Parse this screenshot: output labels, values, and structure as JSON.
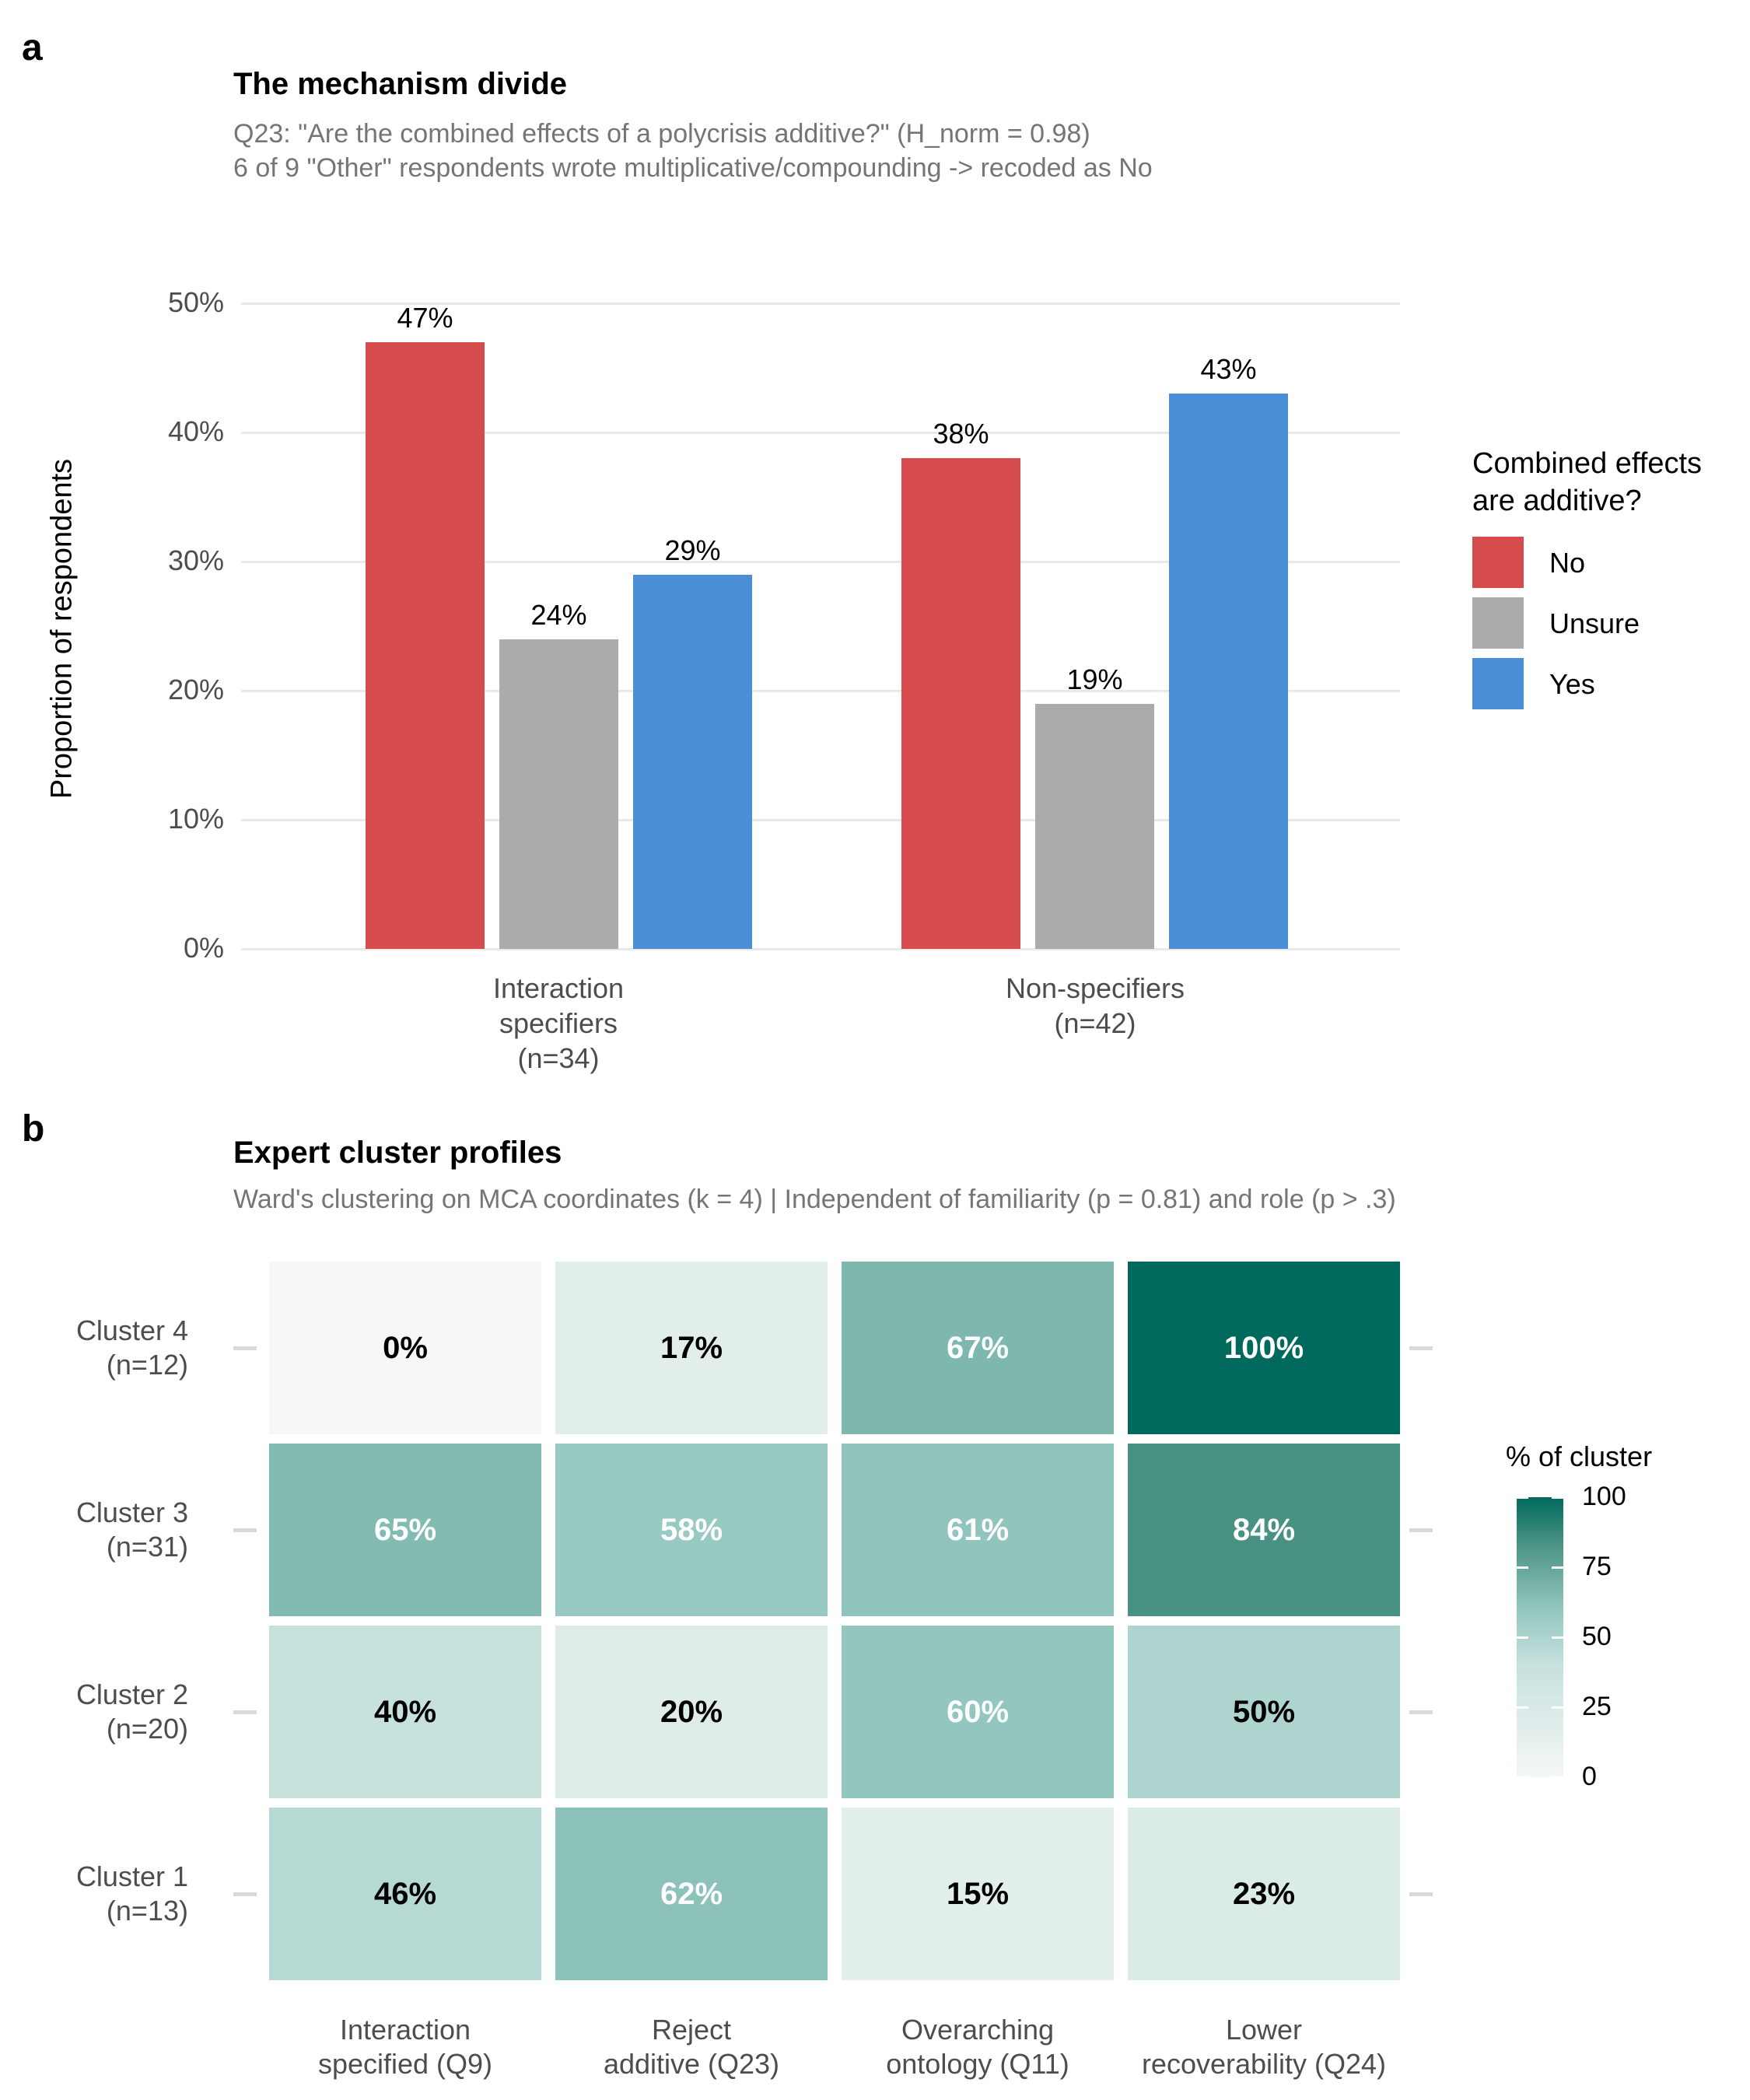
{
  "panel_a": {
    "panel_label": "a",
    "title": "The mechanism divide",
    "subtitle_lines": [
      "Q23: \"Are the combined effects of a polycrisis additive?\" (H_norm = 0.98)",
      "6 of 9 \"Other\" respondents wrote multiplicative/compounding -> recoded as No"
    ],
    "y_axis_title": "Proportion of respondents",
    "legend": {
      "title_lines": [
        "Combined effects",
        "are additive?"
      ],
      "items": [
        {
          "label": "No",
          "color": "#d64c4c"
        },
        {
          "label": "Unsure",
          "color": "#ababab"
        },
        {
          "label": "Yes",
          "color": "#4b8ed8"
        }
      ]
    }
  },
  "panel_b": {
    "panel_label": "b",
    "title": "Expert cluster profiles",
    "subtitle": "Ward's clustering on MCA coordinates (k = 4) | Independent of familiarity (p = 0.81) and role (p > .3)"
  },
  "chart_data": [
    {
      "type": "bar",
      "title": "The mechanism divide",
      "categories": [
        "Interaction specifiers (n=34)",
        "Non-specifiers (n=42)"
      ],
      "category_label_lines": [
        [
          "Interaction",
          "specifiers",
          "(n=34)"
        ],
        [
          "Non-specifiers",
          "(n=42)"
        ]
      ],
      "series": [
        {
          "name": "No",
          "color": "#d64c4c",
          "values": [
            47,
            38
          ]
        },
        {
          "name": "Unsure",
          "color": "#ababab",
          "values": [
            24,
            19
          ]
        },
        {
          "name": "Yes",
          "color": "#4b8ed8",
          "values": [
            29,
            43
          ]
        }
      ],
      "value_labels": [
        [
          "47%",
          "24%",
          "29%"
        ],
        [
          "38%",
          "19%",
          "43%"
        ]
      ],
      "ylabel": "Proportion of respondents",
      "y_ticks": [
        "0%",
        "10%",
        "20%",
        "30%",
        "40%",
        "50%"
      ],
      "ylim": [
        0,
        50
      ],
      "grid": true,
      "legend_title": "Combined effects are additive?",
      "legend_position": "right"
    },
    {
      "type": "heatmap",
      "title": "Expert cluster profiles",
      "rows": [
        {
          "label_lines": [
            "Cluster 4",
            "(n=12)"
          ],
          "values": [
            0,
            17,
            67,
            100
          ]
        },
        {
          "label_lines": [
            "Cluster 3",
            "(n=31)"
          ],
          "values": [
            65,
            58,
            61,
            84
          ]
        },
        {
          "label_lines": [
            "Cluster 2",
            "(n=20)"
          ],
          "values": [
            40,
            20,
            60,
            50
          ]
        },
        {
          "label_lines": [
            "Cluster 1",
            "(n=13)"
          ],
          "values": [
            46,
            62,
            15,
            23
          ]
        }
      ],
      "columns": [
        [
          "Interaction",
          "specified (Q9)"
        ],
        [
          "Reject",
          "additive (Q23)"
        ],
        [
          "Overarching",
          "ontology (Q11)"
        ],
        [
          "Lower",
          "recoverability (Q24)"
        ]
      ],
      "cell_label_suffix": "%",
      "colorbar_title": "% of cluster",
      "colorbar_ticks": [
        100,
        75,
        50,
        25,
        0
      ],
      "color_scale": {
        "0": "#f6f7f7",
        "17": "#e1eeec",
        "40": "#c7e1dd",
        "60": "#93c6bf",
        "84": "#489183",
        "100": "#00695d"
      },
      "value_range": [
        0,
        100
      ]
    }
  ]
}
